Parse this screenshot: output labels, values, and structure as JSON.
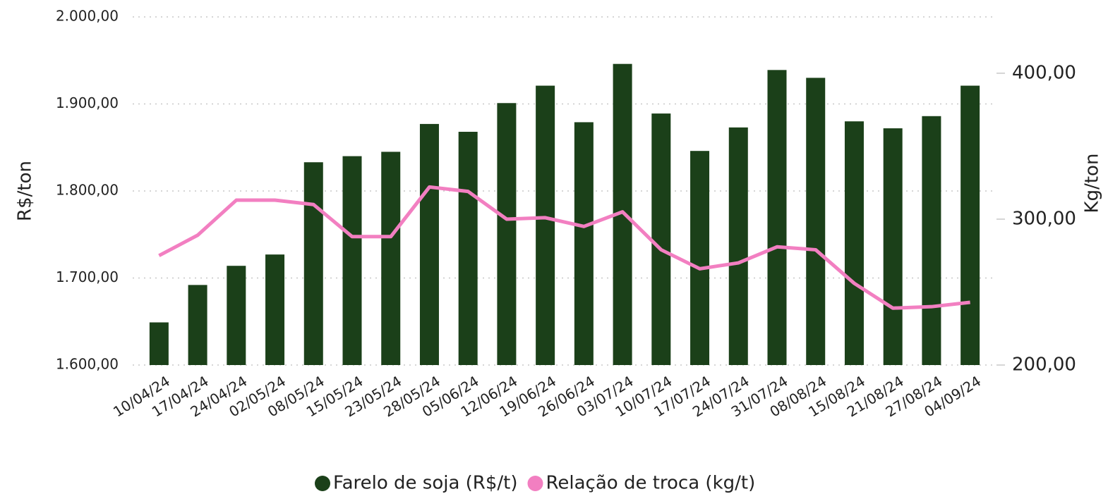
{
  "chart_data": {
    "type": "bar-line",
    "y_label": "R$/ton",
    "y2_label": "Kg/ton",
    "categories": [
      "10/04/24",
      "17/04/24",
      "24/04/24",
      "02/05/24",
      "08/05/24",
      "15/05/24",
      "23/05/24",
      "28/05/24",
      "05/06/24",
      "12/06/24",
      "19/06/24",
      "26/06/24",
      "03/07/24",
      "10/07/24",
      "17/07/24",
      "24/07/24",
      "31/07/24",
      "08/08/24",
      "15/08/24",
      "21/08/24",
      "27/08/24",
      "04/09/24"
    ],
    "series": [
      {
        "name": "Farelo de soja (R$/t)",
        "type": "bar",
        "color": "#1b4019",
        "values": [
          1649,
          1692,
          1714,
          1727,
          1833,
          1840,
          1845,
          1877,
          1868,
          1901,
          1921,
          1879,
          1946,
          1889,
          1846,
          1873,
          1939,
          1930,
          1880,
          1872,
          1886,
          1921
        ]
      },
      {
        "name": "Relação de troca (kg/t)",
        "type": "line",
        "axis": "y2",
        "color": "#f27fc1",
        "values": [
          275,
          289,
          313,
          313,
          310,
          288,
          288,
          322,
          319,
          300,
          301,
          295,
          305,
          279,
          266,
          270,
          281,
          279,
          256,
          239,
          240,
          243
        ]
      }
    ],
    "ylim": [
      1600,
      2000
    ],
    "yticks": [
      {
        "value": 1600,
        "label": "1.600,00"
      },
      {
        "value": 1700,
        "label": "1.700,00"
      },
      {
        "value": 1800,
        "label": "1.800,00"
      },
      {
        "value": 1900,
        "label": "1.900,00"
      },
      {
        "value": 2000,
        "label": "2.000,00"
      }
    ],
    "y2lim": [
      200,
      438.6
    ],
    "y2ticks": [
      {
        "value": 200,
        "label": "200,00"
      },
      {
        "value": 300,
        "label": "300,00"
      },
      {
        "value": 400,
        "label": "400,00"
      }
    ],
    "grid": true,
    "legend": "bottom"
  }
}
